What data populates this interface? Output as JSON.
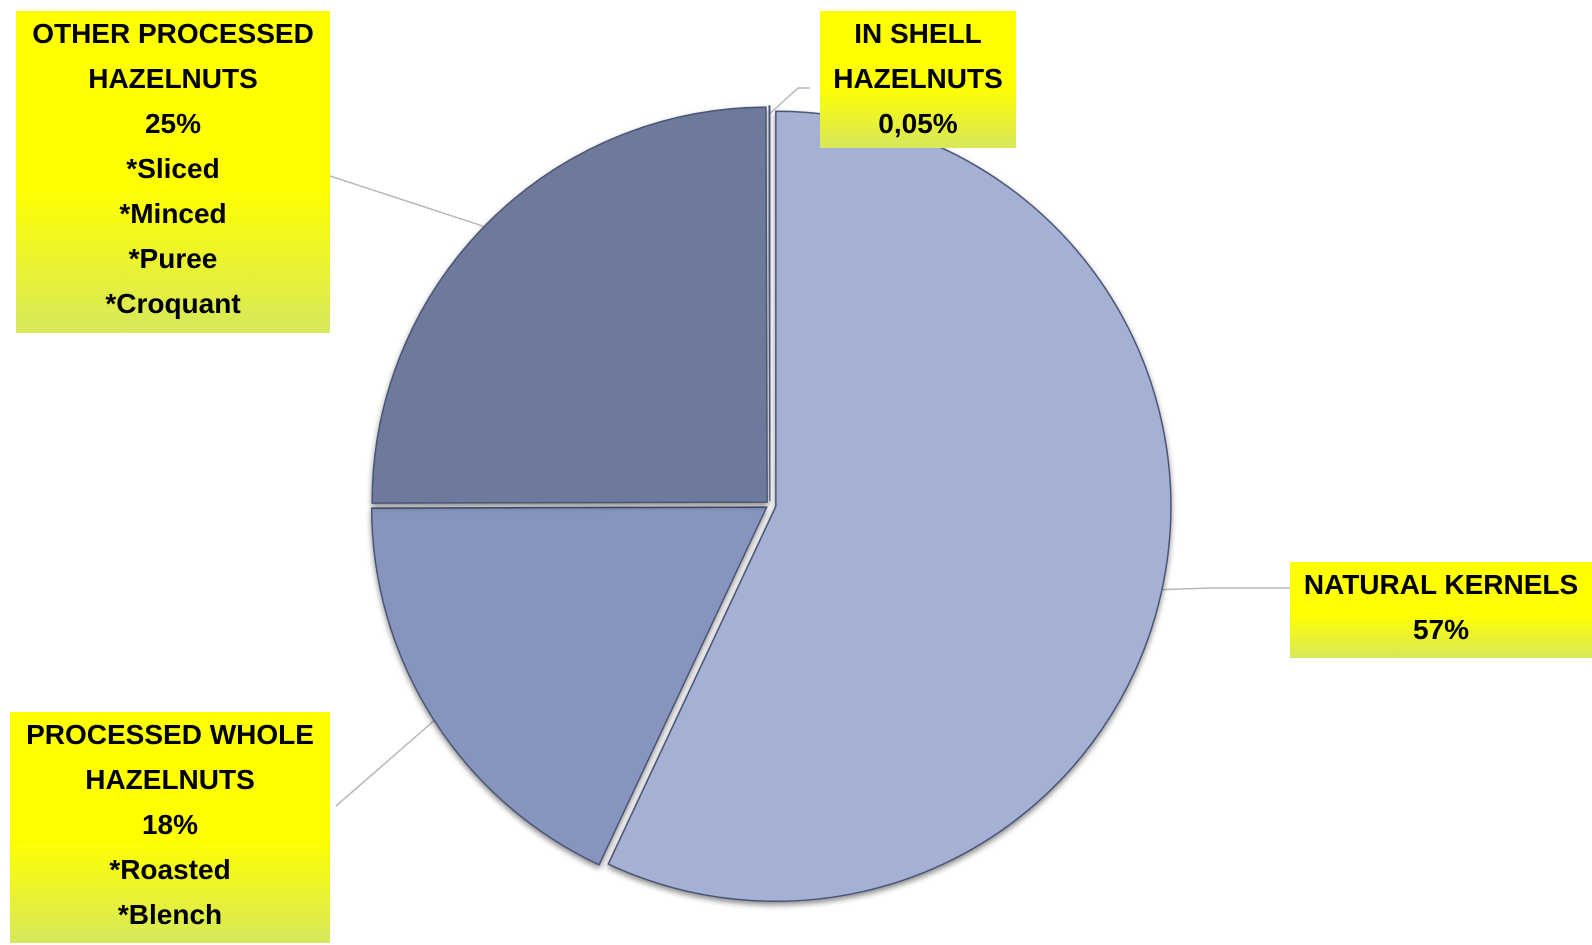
{
  "chart_data": {
    "type": "pie",
    "categories": [
      "NATURAL KERNELS",
      "PROCESSED WHOLE HAZELNUTS",
      "OTHER PROCESSED HAZELNUTS",
      "IN SHELL HAZELNUTS"
    ],
    "values": [
      57,
      18,
      25,
      0.05
    ],
    "value_labels": [
      "57%",
      "18%",
      "25%",
      "0,05%"
    ],
    "notes": [
      [],
      [
        "*Roasted",
        "*Blench"
      ],
      [
        "*Sliced",
        "*Minced",
        "*Puree",
        "*Croquant"
      ],
      []
    ],
    "colors": [
      "#a5b1d4",
      "#8795be",
      "#6d7a9c",
      "#b8c3e0"
    ],
    "label_fill": "#ffff00",
    "title": ""
  }
}
